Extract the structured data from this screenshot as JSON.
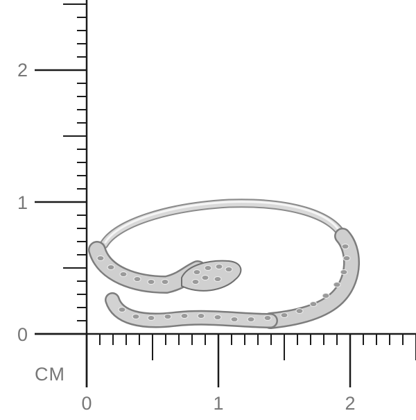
{
  "scale": {
    "unit_label": "CM",
    "axis_color": "#1a1a1a",
    "label_color": "#777777",
    "vertical_labels": [
      "0",
      "1",
      "2"
    ],
    "horizontal_labels": [
      "0",
      "1",
      "2"
    ],
    "ticks_per_unit": 10
  },
  "photo": {
    "subject": "snake-ring",
    "metal_color": "#cfcfcf",
    "highlight_color": "#f4f4f4",
    "shadow_color": "#7d7d7d"
  }
}
